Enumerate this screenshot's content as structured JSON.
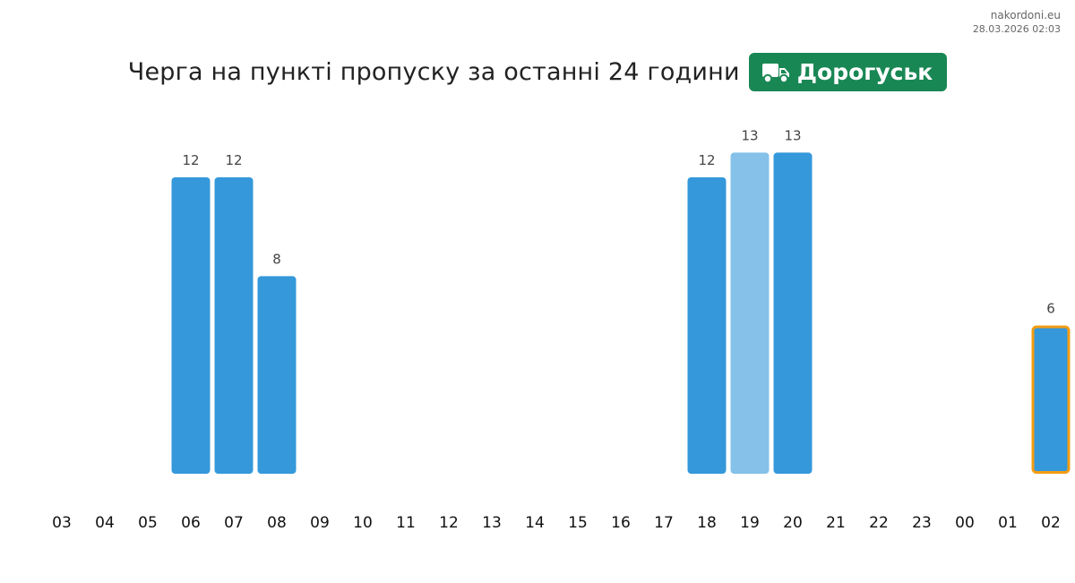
{
  "watermark": {
    "site": "nakordoni.eu",
    "timestamp": "28.03.2026 02:03"
  },
  "header": {
    "title": "Черга на пункті пропуску за останні 24 години",
    "checkpoint": "Дорогуськ",
    "truck_icon": "truck-icon"
  },
  "colors": {
    "bar": "#3498db",
    "bar_light": "#85c1e9",
    "highlight_border": "#f39c12",
    "badge": "#198754"
  },
  "chart_data": {
    "type": "bar",
    "title": "Черга на пункті пропуску за останні 24 години",
    "categories": [
      "03",
      "04",
      "05",
      "06",
      "07",
      "08",
      "09",
      "10",
      "11",
      "12",
      "13",
      "14",
      "15",
      "16",
      "17",
      "18",
      "19",
      "20",
      "21",
      "22",
      "23",
      "00",
      "01",
      "02"
    ],
    "values": [
      0,
      0,
      0,
      12,
      12,
      8,
      0,
      0,
      0,
      0,
      0,
      0,
      0,
      0,
      0,
      12,
      13,
      13,
      0,
      0,
      0,
      0,
      0,
      6
    ],
    "light_categories": [
      "19"
    ],
    "highlighted_categories": [
      "02"
    ],
    "ylim": [
      0,
      13
    ],
    "grid": false,
    "legend": "none"
  }
}
